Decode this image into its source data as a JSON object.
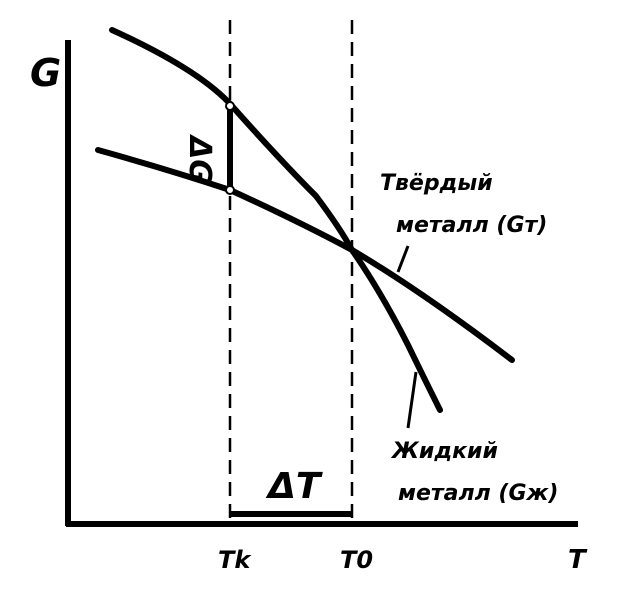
{
  "axes": {
    "y_label": "G",
    "x_label": "T",
    "tick_left": "Tk",
    "tick_right": "T0",
    "dG_label": "ΔG",
    "dT_label": "ΔT"
  },
  "curves": {
    "solid_label_line1": "Твёрдый",
    "solid_label_line2": "металл (Gт)",
    "liquid_label_line1": "Жидкий",
    "liquid_label_line2": "металл (Gж)"
  },
  "colors": {
    "ink": "#000000",
    "background": "#ffffff"
  }
}
